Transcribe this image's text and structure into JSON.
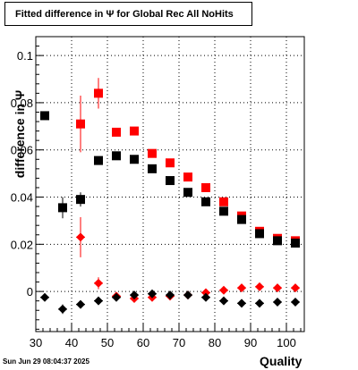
{
  "title": "Fitted difference in  Ψ  for Global Rec All NoHits",
  "timestamp": "Sun Jun 29 08:04:37 2025",
  "chart_data": {
    "type": "scatter",
    "xlabel": "Quality",
    "ylabel": "difference in Ψ",
    "xlim": [
      30,
      105
    ],
    "ylim": [
      -0.017,
      0.108
    ],
    "xticks": [
      30,
      40,
      50,
      60,
      70,
      80,
      90,
      100
    ],
    "yticks": [
      0,
      0.02,
      0.04,
      0.06,
      0.08,
      0.1
    ],
    "ytick_labels": [
      "0",
      "0.02",
      "0.04",
      "0.06",
      "0.08",
      "0.1"
    ],
    "grid": true,
    "series": [
      {
        "marker": "square",
        "color": "#ff0000",
        "x": [
          42.5,
          47.5,
          52.5,
          57.5,
          62.5,
          67.5,
          72.5,
          77.5,
          82.5,
          87.5,
          92.5,
          97.5,
          102.5
        ],
        "y": [
          0.071,
          0.084,
          0.0675,
          0.068,
          0.0585,
          0.0545,
          0.0485,
          0.044,
          0.038,
          0.032,
          0.0255,
          0.0225,
          0.0215
        ],
        "yerr": [
          0.012,
          0.0065,
          0.0015,
          0.001,
          0.001,
          0.001,
          0.001,
          0.001,
          0.001,
          0.001,
          0.001,
          0.001,
          0.001
        ]
      },
      {
        "marker": "square",
        "color": "#000000",
        "x": [
          32.5,
          37.5,
          42.5,
          47.5,
          52.5,
          57.5,
          62.5,
          67.5,
          72.5,
          77.5,
          82.5,
          87.5,
          92.5,
          97.5,
          102.5
        ],
        "y": [
          0.0745,
          0.0355,
          0.039,
          0.0555,
          0.0575,
          0.056,
          0.052,
          0.047,
          0.042,
          0.038,
          0.034,
          0.0305,
          0.0245,
          0.0215,
          0.0205
        ],
        "yerr": [
          0.001,
          0.0045,
          0.003,
          0.001,
          0.001,
          0.001,
          0.001,
          0.001,
          0.001,
          0.001,
          0.001,
          0.001,
          0.001,
          0.001,
          0.001
        ]
      },
      {
        "marker": "diamond",
        "color": "#ff0000",
        "x": [
          42.5,
          47.5,
          52.5,
          57.5,
          62.5,
          67.5,
          72.5,
          77.5,
          82.5,
          87.5,
          92.5,
          97.5,
          102.5
        ],
        "y": [
          0.023,
          0.0035,
          -0.002,
          -0.003,
          -0.0025,
          -0.002,
          -0.0015,
          -0.0005,
          0.0005,
          0.0015,
          0.002,
          0.0015,
          0.0015
        ],
        "yerr": [
          0.0085,
          0.0025,
          0.001,
          0.001,
          0.0005,
          0.0005,
          0.0005,
          0.0005,
          0.0005,
          0.0005,
          0.0005,
          0.0005,
          0.0005
        ]
      },
      {
        "marker": "diamond",
        "color": "#000000",
        "x": [
          32.5,
          37.5,
          42.5,
          47.5,
          52.5,
          57.5,
          62.5,
          67.5,
          72.5,
          77.5,
          82.5,
          87.5,
          92.5,
          97.5,
          102.5
        ],
        "y": [
          -0.0025,
          -0.0075,
          -0.0055,
          -0.004,
          -0.0025,
          -0.0015,
          -0.001,
          -0.0015,
          -0.0015,
          -0.0025,
          -0.004,
          -0.005,
          -0.005,
          -0.0045,
          -0.0045
        ],
        "yerr": [
          0.001,
          0.002,
          0.001,
          0.001,
          0.0005,
          0.0005,
          0.0005,
          0.0005,
          0.0005,
          0.0005,
          0.0005,
          0.0005,
          0.0005,
          0.0005,
          0.0005
        ]
      }
    ]
  }
}
